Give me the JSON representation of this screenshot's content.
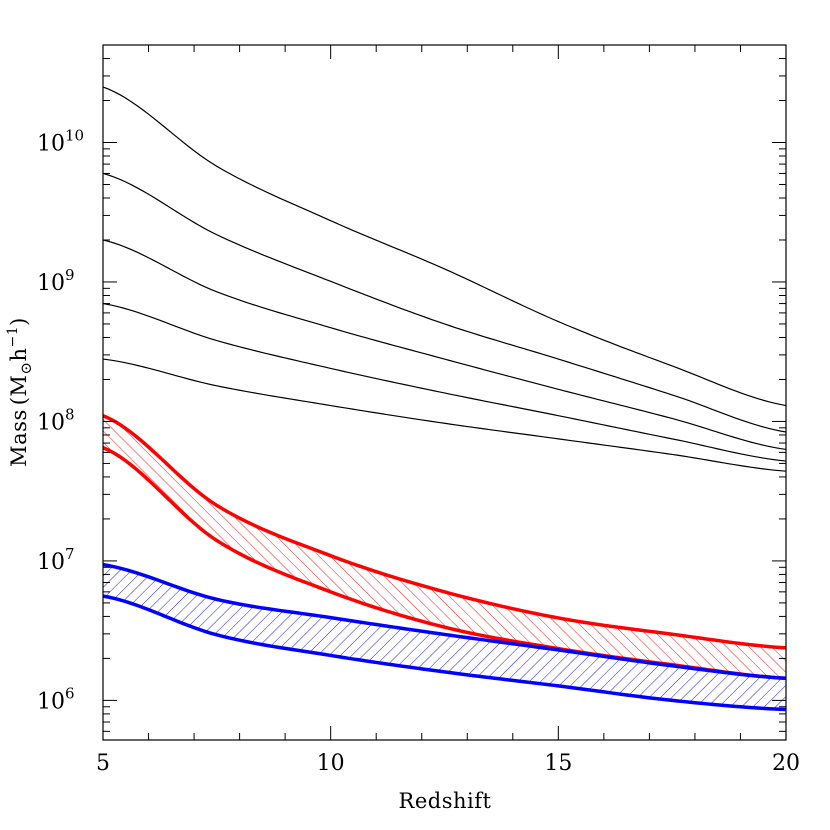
{
  "chart_data": {
    "type": "line",
    "title": "",
    "xlabel": "Redshift",
    "ylabel_main": "Mass",
    "ylabel_sub": "⊙",
    "ylabel_suffix": "h",
    "ylabel_exp": "−1",
    "xlim": [
      5,
      20
    ],
    "ylim": [
      520000,
      50000000000
    ],
    "yscale": "log",
    "x_ticks": [
      5,
      10,
      15,
      20
    ],
    "x_tick_labels": [
      "5",
      "10",
      "15",
      "20"
    ],
    "y_ticks": [
      1000000,
      10000000,
      100000000,
      1000000000,
      10000000000
    ],
    "y_tick_bases": [
      "10",
      "10",
      "10",
      "10",
      "10"
    ],
    "y_tick_exps": [
      "6",
      "7",
      "8",
      "9",
      "10"
    ],
    "x": [
      5,
      7.5,
      10,
      12.5,
      15,
      17.5,
      20
    ],
    "series": [
      {
        "color": "#000000",
        "values": [
          25000000000,
          6750000000,
          2750000000,
          1240000000,
          520000000,
          250000000,
          130000000
        ]
      },
      {
        "color": "#000000",
        "values": [
          6000000000,
          2180000000,
          1010000000,
          500000000,
          280000000,
          155000000,
          84000000
        ]
      },
      {
        "color": "#000000",
        "values": [
          2000000000,
          850000000,
          470000000,
          280000000,
          170000000,
          105000000,
          63000000
        ]
      },
      {
        "color": "#000000",
        "values": [
          700000000,
          380000000,
          240000000,
          160000000,
          110000000,
          75000000,
          52000000
        ]
      },
      {
        "color": "#000000",
        "values": [
          280000000,
          180000000,
          130000000,
          97000000,
          75000000,
          58000000,
          44000000
        ]
      }
    ],
    "bands": [
      {
        "color": "#ff0000",
        "upper": [
          110000000,
          25000000,
          10900000,
          6000000,
          3900000,
          2980000,
          2380000
        ],
        "lower": [
          65000000,
          14000000,
          6000000,
          3350000,
          2350000,
          1800000,
          1440000
        ]
      },
      {
        "color": "#0000ff",
        "upper": [
          9400000,
          5300000,
          3920000,
          2970000,
          2300000,
          1770000,
          1440000
        ],
        "lower": [
          5600000,
          2950000,
          2100000,
          1600000,
          1270000,
          1000000,
          860000
        ]
      }
    ]
  }
}
